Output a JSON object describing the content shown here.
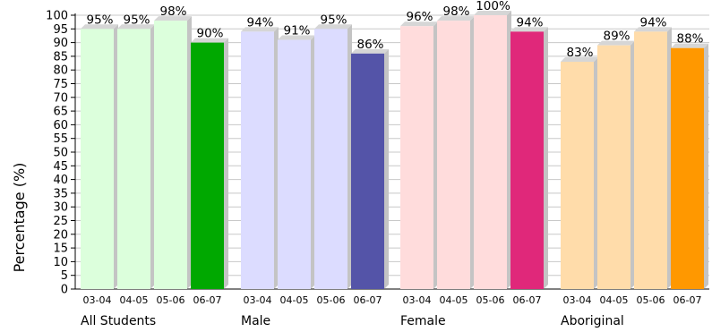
{
  "chart_data": {
    "type": "bar",
    "ylabel": "Percentage (%)",
    "ylim": [
      0,
      100
    ],
    "ytick_step": 5,
    "grid": true,
    "categories": [
      "03-04",
      "04-05",
      "05-06",
      "06-07"
    ],
    "groups": [
      {
        "name": "All Students",
        "values": [
          95,
          95,
          98,
          90
        ],
        "value_labels": [
          "95%",
          "95%",
          "98%",
          "90%"
        ],
        "light_color": "#dcffdc",
        "highlight_color": "#00a800"
      },
      {
        "name": "Male",
        "values": [
          94,
          91,
          95,
          86
        ],
        "value_labels": [
          "94%",
          "91%",
          "95%",
          "86%"
        ],
        "light_color": "#dcdcff",
        "highlight_color": "#5454a8"
      },
      {
        "name": "Female",
        "values": [
          96,
          98,
          100,
          94
        ],
        "value_labels": [
          "96%",
          "98%",
          "100%",
          "94%"
        ],
        "light_color": "#ffdcdc",
        "highlight_color": "#e0287a"
      },
      {
        "name": "Aboriginal",
        "values": [
          83,
          89,
          94,
          88
        ],
        "value_labels": [
          "83%",
          "89%",
          "94%",
          "88%"
        ],
        "light_color": "#ffdcaa",
        "highlight_color": "#ff9800"
      }
    ]
  }
}
